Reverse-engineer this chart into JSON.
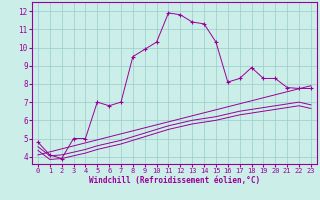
{
  "xlabel": "Windchill (Refroidissement éolien,°C)",
  "bg_color": "#cceee8",
  "line_color": "#990099",
  "grid_color": "#99cccc",
  "x_ticks": [
    0,
    1,
    2,
    3,
    4,
    5,
    6,
    7,
    8,
    9,
    10,
    11,
    12,
    13,
    14,
    15,
    16,
    17,
    18,
    19,
    20,
    21,
    22,
    23
  ],
  "y_ticks": [
    4,
    5,
    6,
    7,
    8,
    9,
    10,
    11,
    12
  ],
  "ylim": [
    3.6,
    12.5
  ],
  "xlim": [
    -0.5,
    23.5
  ],
  "main_x": [
    0,
    1,
    2,
    3,
    4,
    5,
    6,
    7,
    8,
    9,
    10,
    11,
    12,
    13,
    14,
    15,
    16,
    17,
    18,
    19,
    20,
    21,
    22,
    23
  ],
  "main_y": [
    4.8,
    4.1,
    3.9,
    5.0,
    5.0,
    7.0,
    6.8,
    7.0,
    9.5,
    9.9,
    10.3,
    11.9,
    11.8,
    11.4,
    11.3,
    10.3,
    8.1,
    8.3,
    8.9,
    8.3,
    8.3,
    7.8,
    7.75,
    7.75
  ],
  "line2_x": [
    0,
    1,
    2,
    3,
    4,
    5,
    6,
    7,
    8,
    9,
    10,
    11,
    12,
    13,
    14,
    15,
    16,
    17,
    18,
    19,
    20,
    21,
    22,
    23
  ],
  "line2_y": [
    4.55,
    4.05,
    4.1,
    4.25,
    4.4,
    4.6,
    4.75,
    4.9,
    5.1,
    5.3,
    5.5,
    5.7,
    5.85,
    6.0,
    6.1,
    6.2,
    6.35,
    6.5,
    6.6,
    6.7,
    6.8,
    6.9,
    7.0,
    6.85
  ],
  "line3_x": [
    0,
    1,
    2,
    3,
    4,
    5,
    6,
    7,
    8,
    9,
    10,
    11,
    12,
    13,
    14,
    15,
    16,
    17,
    18,
    19,
    20,
    21,
    22,
    23
  ],
  "line3_y": [
    4.35,
    3.85,
    3.9,
    4.05,
    4.2,
    4.4,
    4.55,
    4.7,
    4.9,
    5.1,
    5.3,
    5.5,
    5.65,
    5.8,
    5.9,
    6.0,
    6.15,
    6.3,
    6.4,
    6.5,
    6.6,
    6.7,
    6.8,
    6.65
  ],
  "line4_x": [
    0,
    23
  ],
  "line4_y": [
    4.1,
    7.9
  ]
}
